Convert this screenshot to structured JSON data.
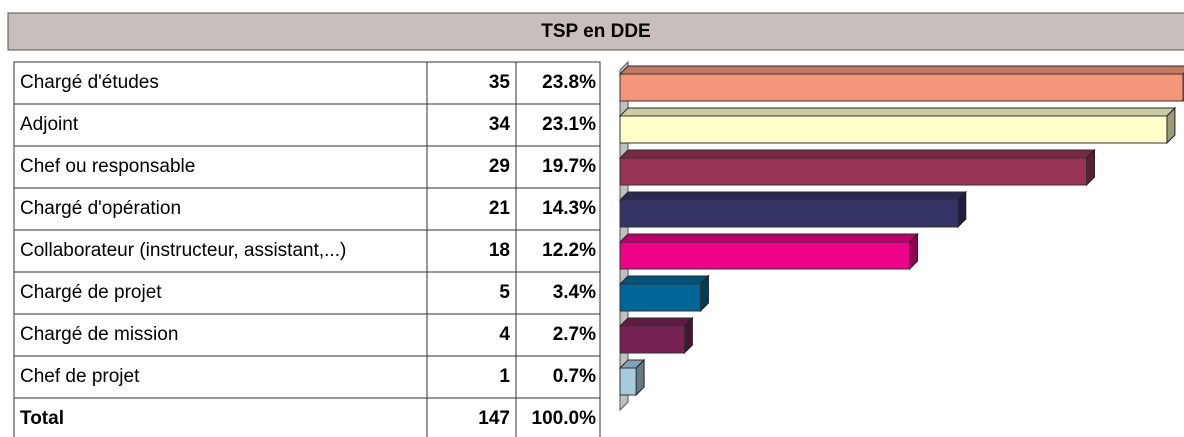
{
  "chart_data": {
    "type": "bar",
    "title": "TSP en DDE",
    "categories": [
      "Chargé d'études",
      "Adjoint",
      "Chef ou responsable",
      "Chargé d'opération",
      "Collaborateur (instructeur, assistant,...)",
      "Chargé de projet",
      "Chargé de mission",
      "Chef de projet"
    ],
    "values": [
      35,
      34,
      29,
      21,
      18,
      5,
      4,
      1
    ],
    "shares": [
      23.8,
      23.1,
      19.7,
      14.3,
      12.2,
      3.4,
      2.7,
      0.7
    ],
    "share_labels": [
      "23.8%",
      "23.1%",
      "19.7%",
      "14.3%",
      "12.2%",
      "3.4%",
      "2.7%",
      "0.7%"
    ],
    "total_label": "Total",
    "total": 147,
    "total_share": 100.0,
    "total_share_label": "100.0%",
    "colors": [
      "#f4967a",
      "#ffffcc",
      "#993355",
      "#333366",
      "#ee0088",
      "#006699",
      "#772255",
      "#a6cade"
    ],
    "xlim": [
      0,
      35
    ]
  }
}
